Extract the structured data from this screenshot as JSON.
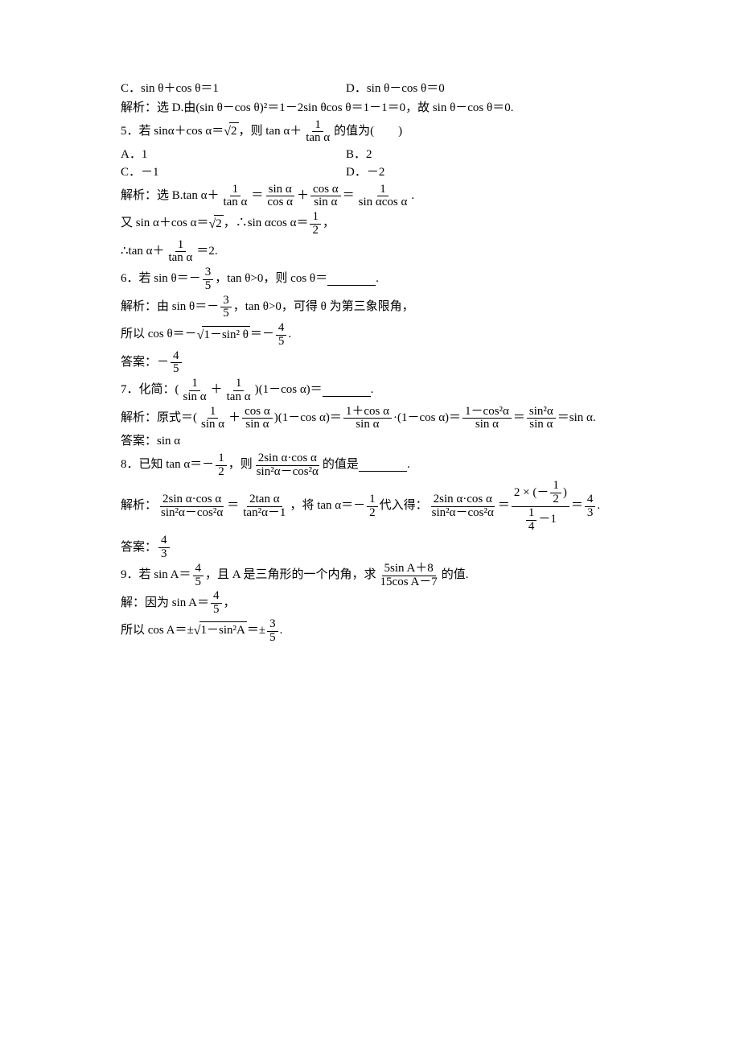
{
  "q4": {
    "optC": "C．sin θ＋cos θ＝1",
    "optD": "D．sin θ－cos θ＝0",
    "ans_prefix": "解析：选 D.由(sin θ－cos θ)²＝",
    "ans_mid": "1",
    "ans_suffix": "－2sin θcos θ＝1－1＝0，故 sin θ－cos θ＝0."
  },
  "q5": {
    "stem_a": "5．若 sin",
    "stem_b": " α＋cos α＝",
    "sqrt_body": "2",
    "stem_c": "，则 tan α＋",
    "frac_num": "1",
    "frac_den": "tan α",
    "stem_d": "的值为(　　)",
    "optA": "A．1",
    "optB": "B．2",
    "optC": "C．－1",
    "optD": "D．－2",
    "ans_prefix": "解析：选 B.tan α＋",
    "eq": "＝",
    "f1n": "1",
    "f1d": "tan α",
    "f2n": "sin α",
    "f2d": "cos α",
    "plus": "＋",
    "f3n": "cos α",
    "f3d": "sin α",
    "f4n": "1",
    "f4d": "sin αcos α",
    "dot": ".",
    "line2_a": "又 sin α＋cos α＝",
    "line2_b": "，∴sin αcos α＝",
    "f5n": "1",
    "f5d": "2",
    "line2_c": "，",
    "line3_a": "∴tan α＋",
    "line3_b": "＝2."
  },
  "q6": {
    "stem_a": "6．若 sin θ＝－",
    "f1n": "3",
    "f1d": "5",
    "stem_b": "，tan θ>0，则 cos θ＝",
    "stem_c": ".",
    "ans_a": "解析：由 sin θ＝－",
    "ans_b": "，tan θ>0，可得 θ 为第三象限角，",
    "ans_c": "所以 cos θ＝－",
    "sqrt_body": "1－sin² θ",
    "ans_d": "＝－",
    "f2n": "4",
    "f2d": "5",
    "ans_e": ".",
    "final_a": "答案：－"
  },
  "q7": {
    "stem_a": "7．化简：(",
    "f1n": "1",
    "f1d": "sin α",
    "plus": "＋",
    "f2n": "1",
    "f2d": "tan α",
    "stem_b": ")(1－cos α)＝",
    "stem_c": ".",
    "ans_a": "解析：原式＝(",
    "f3n": "cos α",
    "f3d": "sin α",
    "ans_b": ")(1－cos α)＝",
    "f4n": "1＋cos α",
    "f4d": "sin α",
    "ans_c": "·(1－cos α)＝",
    "f5n": "1－cos²α",
    "f5d": "sin α",
    "eq": "＝",
    "f6n": "sin²α",
    "f6d": "sin α",
    "ans_d": "＝sin α.",
    "final": "答案：sin α"
  },
  "q8": {
    "stem_a": "8．已知 tan α＝－",
    "f1n": "1",
    "f1d": "2",
    "stem_b": "，则",
    "f2n": "2sin α·cos α",
    "f2d": "sin²α－cos²α",
    "stem_c": "的值是",
    "stem_d": ".",
    "ans_a": "解析：",
    "eq": "＝",
    "f3n": "2tan α",
    "f3d": "tan²α－1",
    "ans_b": "，将 tan α＝－",
    "ans_c": "代入得：",
    "f4nn_a": "2 × (－",
    "f4nn_b": ")",
    "f4nd_a": "",
    "f4nd_b": "－1",
    "f4_inner_num_n": "1",
    "f4_inner_num_d": "2",
    "f4_inner_den_n": "1",
    "f4_inner_den_d": "4",
    "f5n": "4",
    "f5d": "3",
    "ans_d": ".",
    "final_a": "答案："
  },
  "q9": {
    "stem_a": "9．若 sin A＝",
    "f1n": "4",
    "f1d": "5",
    "stem_b": "，且 A 是三角形的一个内角，求",
    "f2n": "5sin A＋8",
    "f2d": "15cos A－7",
    "stem_c": "的值.",
    "ans_a": "解：因为 sin A＝",
    "ans_b": "，",
    "ans_c": "所以 cos A＝±",
    "sqrt_body": "1－sin²A",
    "ans_d": "＝±",
    "f3n": "3",
    "f3d": "5",
    "ans_e": "."
  }
}
